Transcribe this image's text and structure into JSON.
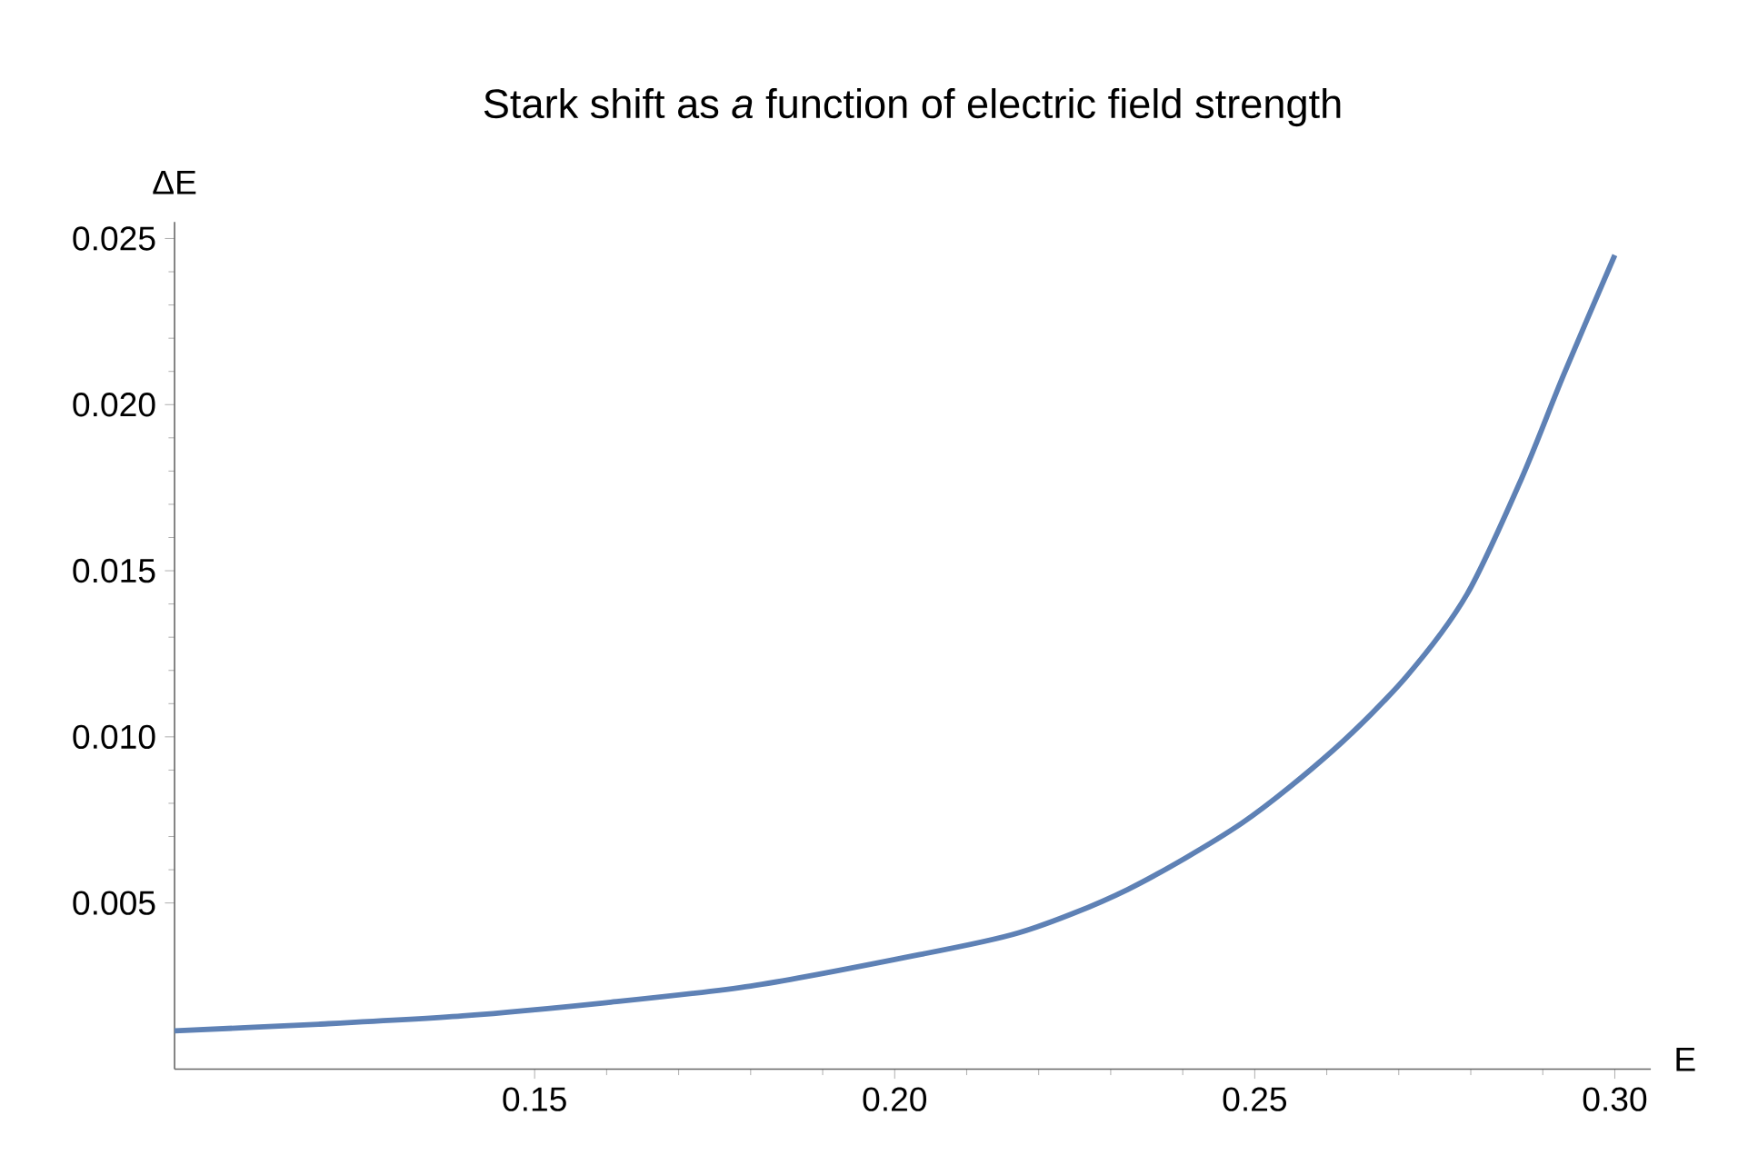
{
  "chart_data": {
    "type": "line",
    "title": "Stark shift as *a* function of electric field strength",
    "xlabel": "E",
    "ylabel": "ΔE",
    "x": [
      0.1,
      0.12,
      0.14,
      0.16,
      0.18,
      0.2,
      0.2172,
      0.2323,
      0.2482,
      0.2609,
      0.271,
      0.2795,
      0.2871,
      0.2929,
      0.3
    ],
    "series": [
      {
        "color": "#5e81b5",
        "values": [
          0.00115,
          0.00135,
          0.0016,
          0.002,
          0.0025,
          0.0033,
          0.0041,
          0.0054,
          0.0074,
          0.0096,
          0.0118,
          0.0143,
          0.0178,
          0.0209,
          0.0245
        ]
      }
    ],
    "xlim": [
      0.1,
      0.305
    ],
    "ylim": [
      0,
      0.0255
    ],
    "xticks": [
      {
        "value": 0.15,
        "label": "0.15"
      },
      {
        "value": 0.2,
        "label": "0.20"
      },
      {
        "value": 0.25,
        "label": "0.25"
      },
      {
        "value": 0.3,
        "label": "0.30"
      }
    ],
    "yticks": [
      {
        "value": 0.005,
        "label": "0.005"
      },
      {
        "value": 0.01,
        "label": "0.010"
      },
      {
        "value": 0.015,
        "label": "0.015"
      },
      {
        "value": 0.02,
        "label": "0.020"
      },
      {
        "value": 0.025,
        "label": "0.025"
      }
    ],
    "marker": "none",
    "line_style": "solid"
  }
}
